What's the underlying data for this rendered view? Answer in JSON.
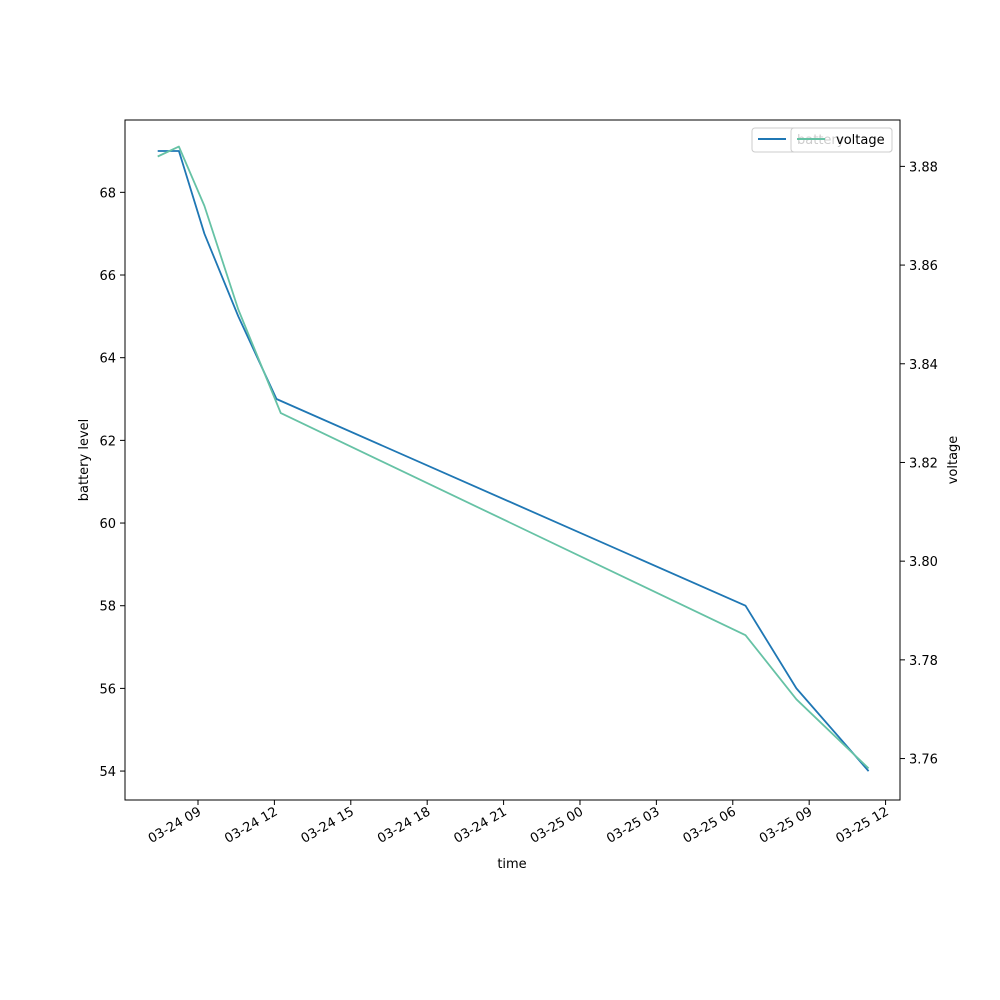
{
  "chart_data": {
    "type": "line",
    "xlabel": "time",
    "ylabel_left": "battery level",
    "ylabel_right": "voltage",
    "x_ticks": [
      "03-24 09",
      "03-24 12",
      "03-24 15",
      "03-24 18",
      "03-24 21",
      "03-25 00",
      "03-25 03",
      "03-25 06",
      "03-25 09",
      "03-25 12"
    ],
    "x_tick_times": [
      "2024-03-24T09:00",
      "2024-03-24T12:00",
      "2024-03-24T15:00",
      "2024-03-24T18:00",
      "2024-03-24T21:00",
      "2024-03-25T00:00",
      "2024-03-25T03:00",
      "2024-03-25T06:00",
      "2024-03-25T09:00",
      "2024-03-25T12:00"
    ],
    "x_range": [
      "2024-03-24T06:08",
      "2024-03-25T12:34"
    ],
    "ylim_left": [
      53.3,
      69.75
    ],
    "ylim_right": [
      3.7516,
      3.8894
    ],
    "y_ticks_left": [
      54,
      56,
      58,
      60,
      62,
      64,
      66,
      68
    ],
    "y_ticks_right": [
      3.76,
      3.78,
      3.8,
      3.82,
      3.84,
      3.86,
      3.88
    ],
    "y_tick_labels_right": [
      "3.76",
      "3.78",
      "3.80",
      "3.82",
      "3.84",
      "3.86",
      "3.88"
    ],
    "legend_placement": "top-right",
    "series": [
      {
        "name": "battery",
        "axis": "left",
        "color": "#1f77b4",
        "points": [
          {
            "t": "2024-03-24T07:25",
            "y": 69
          },
          {
            "t": "2024-03-24T08:15",
            "y": 69
          },
          {
            "t": "2024-03-24T09:15",
            "y": 67
          },
          {
            "t": "2024-03-24T10:35",
            "y": 65
          },
          {
            "t": "2024-03-24T12:05",
            "y": 63
          },
          {
            "t": "2024-03-25T06:30",
            "y": 58
          },
          {
            "t": "2024-03-25T08:30",
            "y": 56
          },
          {
            "t": "2024-03-25T11:20",
            "y": 54
          }
        ]
      },
      {
        "name": "voltage",
        "axis": "right",
        "color": "#66c2a5",
        "points": [
          {
            "t": "2024-03-24T07:25",
            "y": 3.882
          },
          {
            "t": "2024-03-24T08:15",
            "y": 3.884
          },
          {
            "t": "2024-03-24T09:15",
            "y": 3.872
          },
          {
            "t": "2024-03-24T10:35",
            "y": 3.851
          },
          {
            "t": "2024-03-24T12:15",
            "y": 3.83
          },
          {
            "t": "2024-03-25T06:30",
            "y": 3.785
          },
          {
            "t": "2024-03-25T08:30",
            "y": 3.772
          },
          {
            "t": "2024-03-25T11:20",
            "y": 3.758
          }
        ]
      }
    ]
  }
}
